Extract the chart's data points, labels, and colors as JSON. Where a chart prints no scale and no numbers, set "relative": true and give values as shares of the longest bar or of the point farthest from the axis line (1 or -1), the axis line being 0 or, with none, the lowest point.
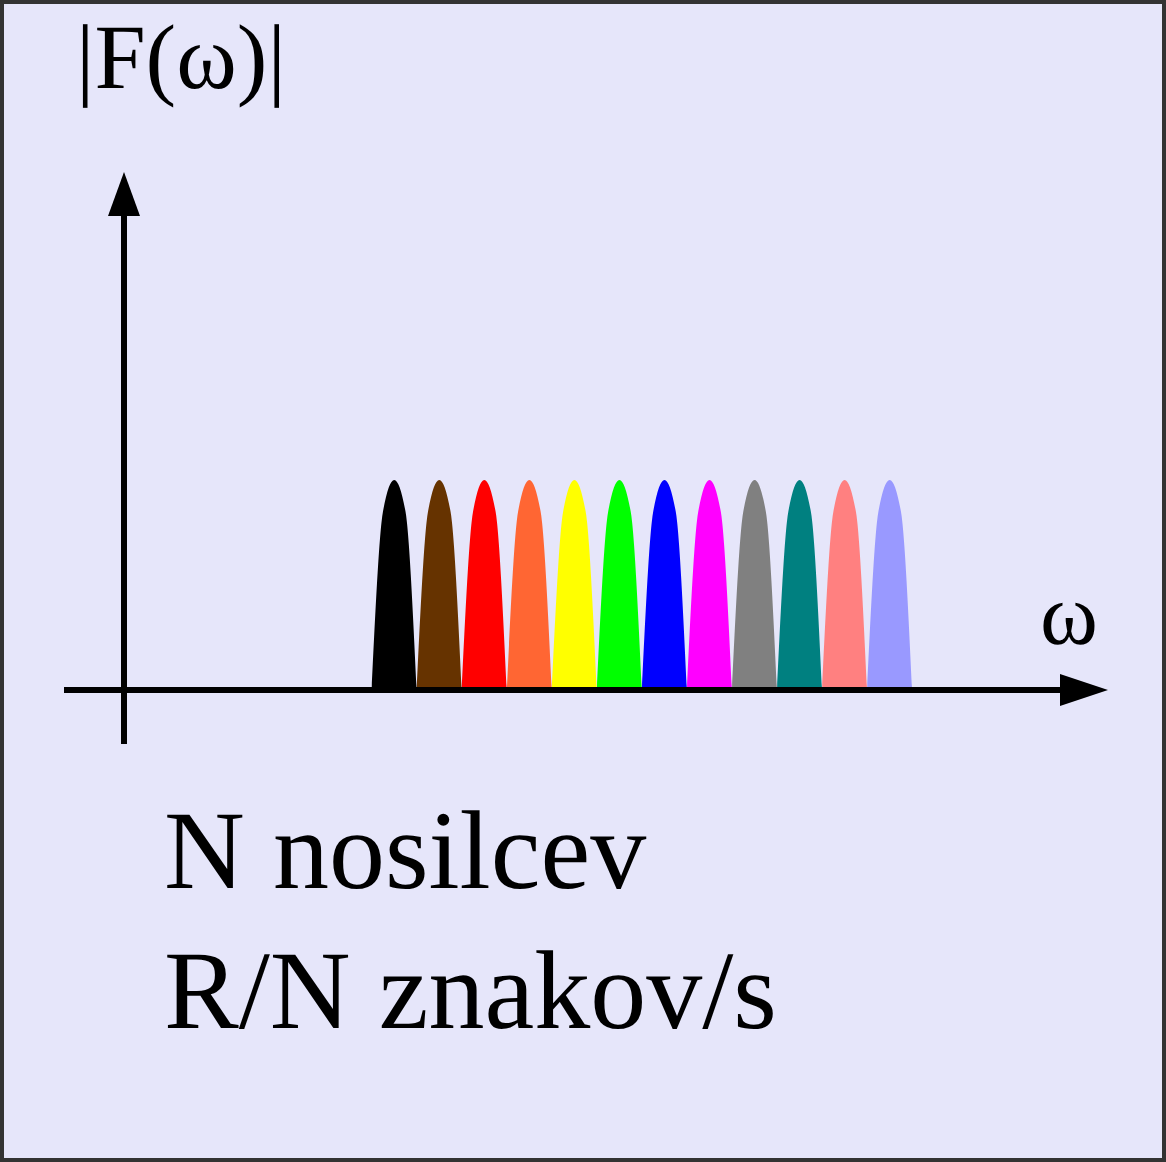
{
  "chart_data": {
    "type": "area",
    "relative": true,
    "xlabel": "ω",
    "ylabel": "|F(ω)|",
    "annotations": [
      "N nosilcev",
      "R/N znakov/s"
    ],
    "categories": [
      null,
      null,
      null,
      null,
      null,
      null,
      null,
      null,
      null,
      null,
      null,
      null,
      null,
      null,
      null,
      null,
      null,
      null,
      null,
      null,
      null,
      null,
      null,
      null,
      null,
      null,
      null,
      null,
      null,
      null,
      null,
      null,
      null,
      null,
      null,
      null,
      null,
      null,
      null,
      null,
      null,
      null,
      null,
      null,
      null,
      null,
      null,
      null,
      null,
      null,
      null,
      null,
      null,
      null,
      null,
      null,
      null,
      null,
      null,
      null,
      null,
      null,
      null,
      null,
      null,
      null,
      null,
      null,
      null,
      null,
      null
    ],
    "series": [
      {
        "color": "#000000",
        "values": [
          null,
          null,
          null,
          null,
          null,
          null,
          null,
          null,
          null,
          null,
          null,
          null,
          null,
          null,
          null,
          null,
          null,
          null,
          null,
          null,
          null,
          null,
          0,
          0.85,
          1,
          0.85,
          0,
          null,
          null,
          null,
          null,
          null,
          null,
          null,
          null,
          null,
          null,
          null,
          null,
          null,
          null,
          null,
          null,
          null,
          null,
          null,
          null,
          null,
          null,
          null,
          null,
          null,
          null,
          null,
          null,
          null,
          null,
          null,
          null,
          null,
          null,
          null,
          null,
          null,
          null,
          null,
          null,
          null,
          null,
          null,
          null
        ]
      },
      {
        "color": "#663300",
        "values": [
          null,
          null,
          null,
          null,
          null,
          null,
          null,
          null,
          null,
          null,
          null,
          null,
          null,
          null,
          null,
          null,
          null,
          null,
          null,
          null,
          null,
          null,
          null,
          null,
          null,
          null,
          0,
          0.85,
          1,
          0.85,
          0,
          null,
          null,
          null,
          null,
          null,
          null,
          null,
          null,
          null,
          null,
          null,
          null,
          null,
          null,
          null,
          null,
          null,
          null,
          null,
          null,
          null,
          null,
          null,
          null,
          null,
          null,
          null,
          null,
          null,
          null,
          null,
          null,
          null,
          null,
          null,
          null,
          null,
          null,
          null,
          null
        ]
      },
      {
        "color": "#ff0000",
        "values": [
          null,
          null,
          null,
          null,
          null,
          null,
          null,
          null,
          null,
          null,
          null,
          null,
          null,
          null,
          null,
          null,
          null,
          null,
          null,
          null,
          null,
          null,
          null,
          null,
          null,
          null,
          null,
          null,
          null,
          null,
          0,
          0.85,
          1,
          0.85,
          0,
          null,
          null,
          null,
          null,
          null,
          null,
          null,
          null,
          null,
          null,
          null,
          null,
          null,
          null,
          null,
          null,
          null,
          null,
          null,
          null,
          null,
          null,
          null,
          null,
          null,
          null,
          null,
          null,
          null,
          null,
          null,
          null,
          null,
          null,
          null,
          null
        ]
      },
      {
        "color": "#ff6633",
        "values": [
          null,
          null,
          null,
          null,
          null,
          null,
          null,
          null,
          null,
          null,
          null,
          null,
          null,
          null,
          null,
          null,
          null,
          null,
          null,
          null,
          null,
          null,
          null,
          null,
          null,
          null,
          null,
          null,
          null,
          null,
          null,
          null,
          null,
          null,
          0,
          0.85,
          1,
          0.85,
          0,
          null,
          null,
          null,
          null,
          null,
          null,
          null,
          null,
          null,
          null,
          null,
          null,
          null,
          null,
          null,
          null,
          null,
          null,
          null,
          null,
          null,
          null,
          null,
          null,
          null,
          null,
          null,
          null,
          null,
          null,
          null,
          null
        ]
      },
      {
        "color": "#ffff00",
        "values": [
          null,
          null,
          null,
          null,
          null,
          null,
          null,
          null,
          null,
          null,
          null,
          null,
          null,
          null,
          null,
          null,
          null,
          null,
          null,
          null,
          null,
          null,
          null,
          null,
          null,
          null,
          null,
          null,
          null,
          null,
          null,
          null,
          null,
          null,
          null,
          null,
          null,
          null,
          0,
          0.85,
          1,
          0.85,
          0,
          null,
          null,
          null,
          null,
          null,
          null,
          null,
          null,
          null,
          null,
          null,
          null,
          null,
          null,
          null,
          null,
          null,
          null,
          null,
          null,
          null,
          null,
          null,
          null,
          null,
          null,
          null,
          null
        ]
      },
      {
        "color": "#00ff00",
        "values": [
          null,
          null,
          null,
          null,
          null,
          null,
          null,
          null,
          null,
          null,
          null,
          null,
          null,
          null,
          null,
          null,
          null,
          null,
          null,
          null,
          null,
          null,
          null,
          null,
          null,
          null,
          null,
          null,
          null,
          null,
          null,
          null,
          null,
          null,
          null,
          null,
          null,
          null,
          null,
          null,
          null,
          null,
          0,
          0.85,
          1,
          0.85,
          0,
          null,
          null,
          null,
          null,
          null,
          null,
          null,
          null,
          null,
          null,
          null,
          null,
          null,
          null,
          null,
          null,
          null,
          null,
          null,
          null,
          null,
          null,
          null,
          null
        ]
      },
      {
        "color": "#0000ff",
        "values": [
          null,
          null,
          null,
          null,
          null,
          null,
          null,
          null,
          null,
          null,
          null,
          null,
          null,
          null,
          null,
          null,
          null,
          null,
          null,
          null,
          null,
          null,
          null,
          null,
          null,
          null,
          null,
          null,
          null,
          null,
          null,
          null,
          null,
          null,
          null,
          null,
          null,
          null,
          null,
          null,
          null,
          null,
          null,
          null,
          null,
          null,
          0,
          0.85,
          1,
          0.85,
          0,
          null,
          null,
          null,
          null,
          null,
          null,
          null,
          null,
          null,
          null,
          null,
          null,
          null,
          null,
          null,
          null,
          null,
          null,
          null,
          null
        ]
      },
      {
        "color": "#ff00ff",
        "values": [
          null,
          null,
          null,
          null,
          null,
          null,
          null,
          null,
          null,
          null,
          null,
          null,
          null,
          null,
          null,
          null,
          null,
          null,
          null,
          null,
          null,
          null,
          null,
          null,
          null,
          null,
          null,
          null,
          null,
          null,
          null,
          null,
          null,
          null,
          null,
          null,
          null,
          null,
          null,
          null,
          null,
          null,
          null,
          null,
          null,
          null,
          null,
          null,
          null,
          null,
          0,
          0.85,
          1,
          0.85,
          0,
          null,
          null,
          null,
          null,
          null,
          null,
          null,
          null,
          null,
          null,
          null,
          null,
          null,
          null,
          null,
          null
        ]
      },
      {
        "color": "#808080",
        "values": [
          null,
          null,
          null,
          null,
          null,
          null,
          null,
          null,
          null,
          null,
          null,
          null,
          null,
          null,
          null,
          null,
          null,
          null,
          null,
          null,
          null,
          null,
          null,
          null,
          null,
          null,
          null,
          null,
          null,
          null,
          null,
          null,
          null,
          null,
          null,
          null,
          null,
          null,
          null,
          null,
          null,
          null,
          null,
          null,
          null,
          null,
          null,
          null,
          null,
          null,
          null,
          null,
          null,
          null,
          0,
          0.85,
          1,
          0.85,
          0,
          null,
          null,
          null,
          null,
          null,
          null,
          null,
          null,
          null,
          null,
          null,
          null
        ]
      },
      {
        "color": "#008080",
        "values": [
          null,
          null,
          null,
          null,
          null,
          null,
          null,
          null,
          null,
          null,
          null,
          null,
          null,
          null,
          null,
          null,
          null,
          null,
          null,
          null,
          null,
          null,
          null,
          null,
          null,
          null,
          null,
          null,
          null,
          null,
          null,
          null,
          null,
          null,
          null,
          null,
          null,
          null,
          null,
          null,
          null,
          null,
          null,
          null,
          null,
          null,
          null,
          null,
          null,
          null,
          null,
          null,
          null,
          null,
          null,
          null,
          null,
          null,
          0,
          0.85,
          1,
          0.85,
          0,
          null,
          null,
          null,
          null,
          null,
          null,
          null,
          null
        ]
      },
      {
        "color": "#ff8080",
        "values": [
          null,
          null,
          null,
          null,
          null,
          null,
          null,
          null,
          null,
          null,
          null,
          null,
          null,
          null,
          null,
          null,
          null,
          null,
          null,
          null,
          null,
          null,
          null,
          null,
          null,
          null,
          null,
          null,
          null,
          null,
          null,
          null,
          null,
          null,
          null,
          null,
          null,
          null,
          null,
          null,
          null,
          null,
          null,
          null,
          null,
          null,
          null,
          null,
          null,
          null,
          null,
          null,
          null,
          null,
          null,
          null,
          null,
          null,
          null,
          null,
          null,
          null,
          0,
          0.85,
          1,
          0.85,
          0,
          null,
          null,
          null,
          null
        ]
      },
      {
        "color": "#9999ff",
        "values": [
          null,
          null,
          null,
          null,
          null,
          null,
          null,
          null,
          null,
          null,
          null,
          null,
          null,
          null,
          null,
          null,
          null,
          null,
          null,
          null,
          null,
          null,
          null,
          null,
          null,
          null,
          null,
          null,
          null,
          null,
          null,
          null,
          null,
          null,
          null,
          null,
          null,
          null,
          null,
          null,
          null,
          null,
          null,
          null,
          null,
          null,
          null,
          null,
          null,
          null,
          null,
          null,
          null,
          null,
          null,
          null,
          null,
          null,
          null,
          null,
          null,
          null,
          null,
          null,
          null,
          null,
          0,
          0.85,
          1,
          0.85,
          0
        ]
      }
    ]
  }
}
